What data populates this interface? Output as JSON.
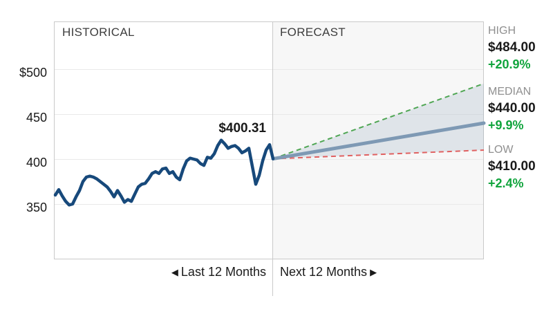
{
  "panels": {
    "historical_label": "HISTORICAL",
    "forecast_label": "FORECAST"
  },
  "y_axis": {
    "tick_labels": [
      "$500",
      "450",
      "400",
      "350"
    ]
  },
  "x_axis": {
    "historical_arrow": "◀",
    "historical_label": "Last 12 Months",
    "forecast_label": "Next 12 Months",
    "forecast_arrow": "▶"
  },
  "current_price": {
    "label": "$400.31",
    "value": 400.31
  },
  "forecast_legend": [
    {
      "name": "HIGH",
      "price": "$484.00",
      "pct": "+20.9%"
    },
    {
      "name": "MEDIAN",
      "price": "$440.00",
      "pct": "+9.9%"
    },
    {
      "name": "LOW",
      "price": "$410.00",
      "pct": "+2.4%"
    }
  ],
  "colors": {
    "historical_line": "#17497B",
    "median_line": "#7E99B4",
    "high_line": "#4FA653",
    "low_line": "#E06060",
    "fan_fill": "#8FA6BC",
    "green_text": "#10A43C",
    "gray_label": "#8F8F8F",
    "price_text": "#1A1A1A",
    "header_text": "#3D3D3D",
    "axis_text": "#1A1A1A",
    "panel_bg": "#F7F7F7",
    "grid": "#E9E9E9",
    "border": "#C9C9C9"
  },
  "chart_data": {
    "type": "line",
    "title": "Stock price: last 12 months historical with 12-month analyst forecast fan",
    "grid": true,
    "y_ticks": [
      500,
      450,
      400,
      350
    ],
    "y_tick_labels": [
      "$500",
      "450",
      "400",
      "350"
    ],
    "ylim": [
      289,
      553
    ],
    "historical": {
      "label": "Last 12 Months",
      "last_price": 400.31,
      "prices": [
        360,
        366,
        359,
        353,
        349,
        350,
        358,
        365,
        375,
        380,
        381,
        380,
        378,
        375,
        372,
        369,
        364,
        358,
        365,
        359,
        352,
        355,
        353,
        361,
        369,
        372,
        373,
        378,
        384,
        386,
        384,
        389,
        390,
        384,
        386,
        380,
        377,
        389,
        398,
        401,
        400,
        399,
        395,
        393,
        402,
        401,
        406,
        415,
        421,
        417,
        412,
        414,
        415,
        412,
        407,
        409,
        412,
        392,
        372,
        382,
        398,
        410,
        416,
        400.31
      ]
    },
    "forecast": {
      "label": "Next 12 Months",
      "start_price": 400.31,
      "high": 484.0,
      "high_change_pct": 20.9,
      "median": 440.0,
      "median_change_pct": 9.9,
      "low": 410.0,
      "low_change_pct": 2.4
    }
  }
}
